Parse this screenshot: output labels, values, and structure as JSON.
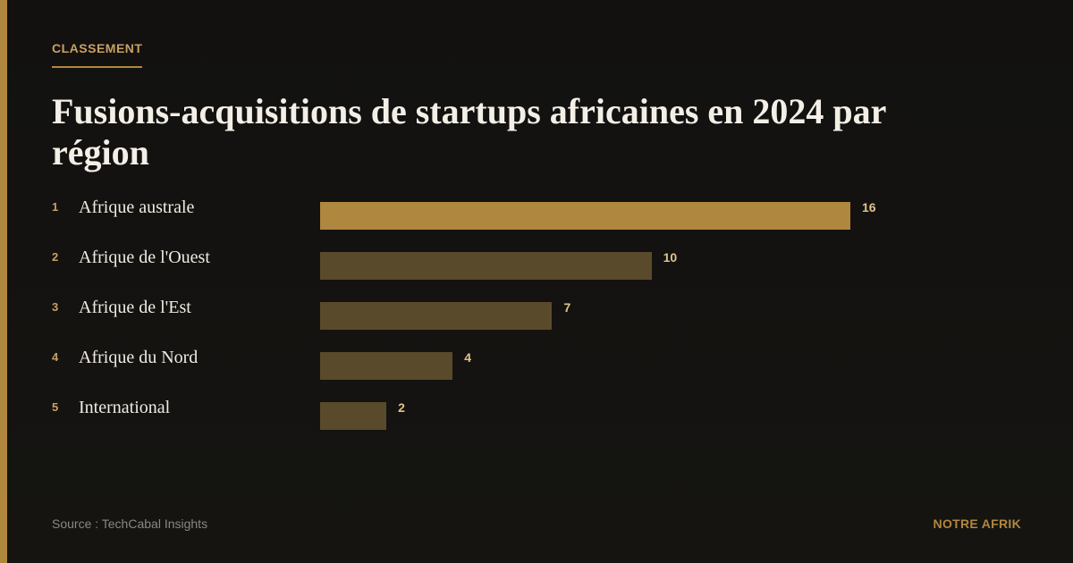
{
  "chart_data": {
    "type": "bar",
    "kicker": "CLASSEMENT",
    "title": "Fusions-acquisitions de startups africaines en 2024 par région",
    "ranks": [
      1,
      2,
      3,
      4,
      5
    ],
    "categories": [
      "Afrique australe",
      "Afrique de l'Ouest",
      "Afrique de l'Est",
      "Afrique du Nord",
      "International"
    ],
    "values": [
      16,
      10,
      7,
      4,
      2
    ],
    "highlight_color": "#b0873e",
    "color": "#5a4a2c",
    "source": "Source : TechCabal Insights",
    "brand": "NOTRE AFRIK"
  }
}
